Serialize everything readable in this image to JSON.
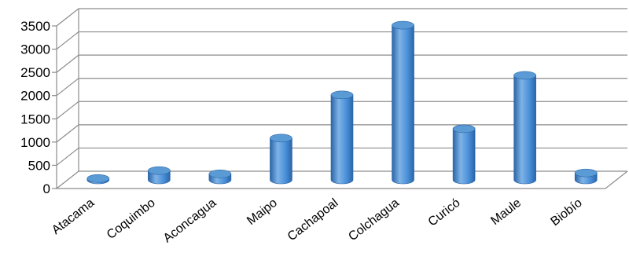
{
  "chart_data": {
    "type": "bar",
    "style": "3d-cylinder",
    "categories": [
      "Atacama",
      "Coquimbo",
      "Aconcagua",
      "Maipo",
      "Cachapoal",
      "Colchagua",
      "Curicó",
      "Maule",
      "Biobío"
    ],
    "values": [
      30,
      200,
      130,
      900,
      1830,
      3330,
      1100,
      2250,
      150
    ],
    "ylim": [
      0,
      3500
    ],
    "yticks": [
      0,
      500,
      1000,
      1500,
      2000,
      2500,
      3000,
      3500
    ],
    "grid": true,
    "legend": "none",
    "title": "",
    "xlabel": "",
    "ylabel": "",
    "colors": {
      "bar_light": "#7fb3e6",
      "bar_mid": "#4a90d9",
      "bar_dark": "#2a65a8",
      "bar_top": "#5b9bd5",
      "grid": "#8c8c8c"
    }
  }
}
